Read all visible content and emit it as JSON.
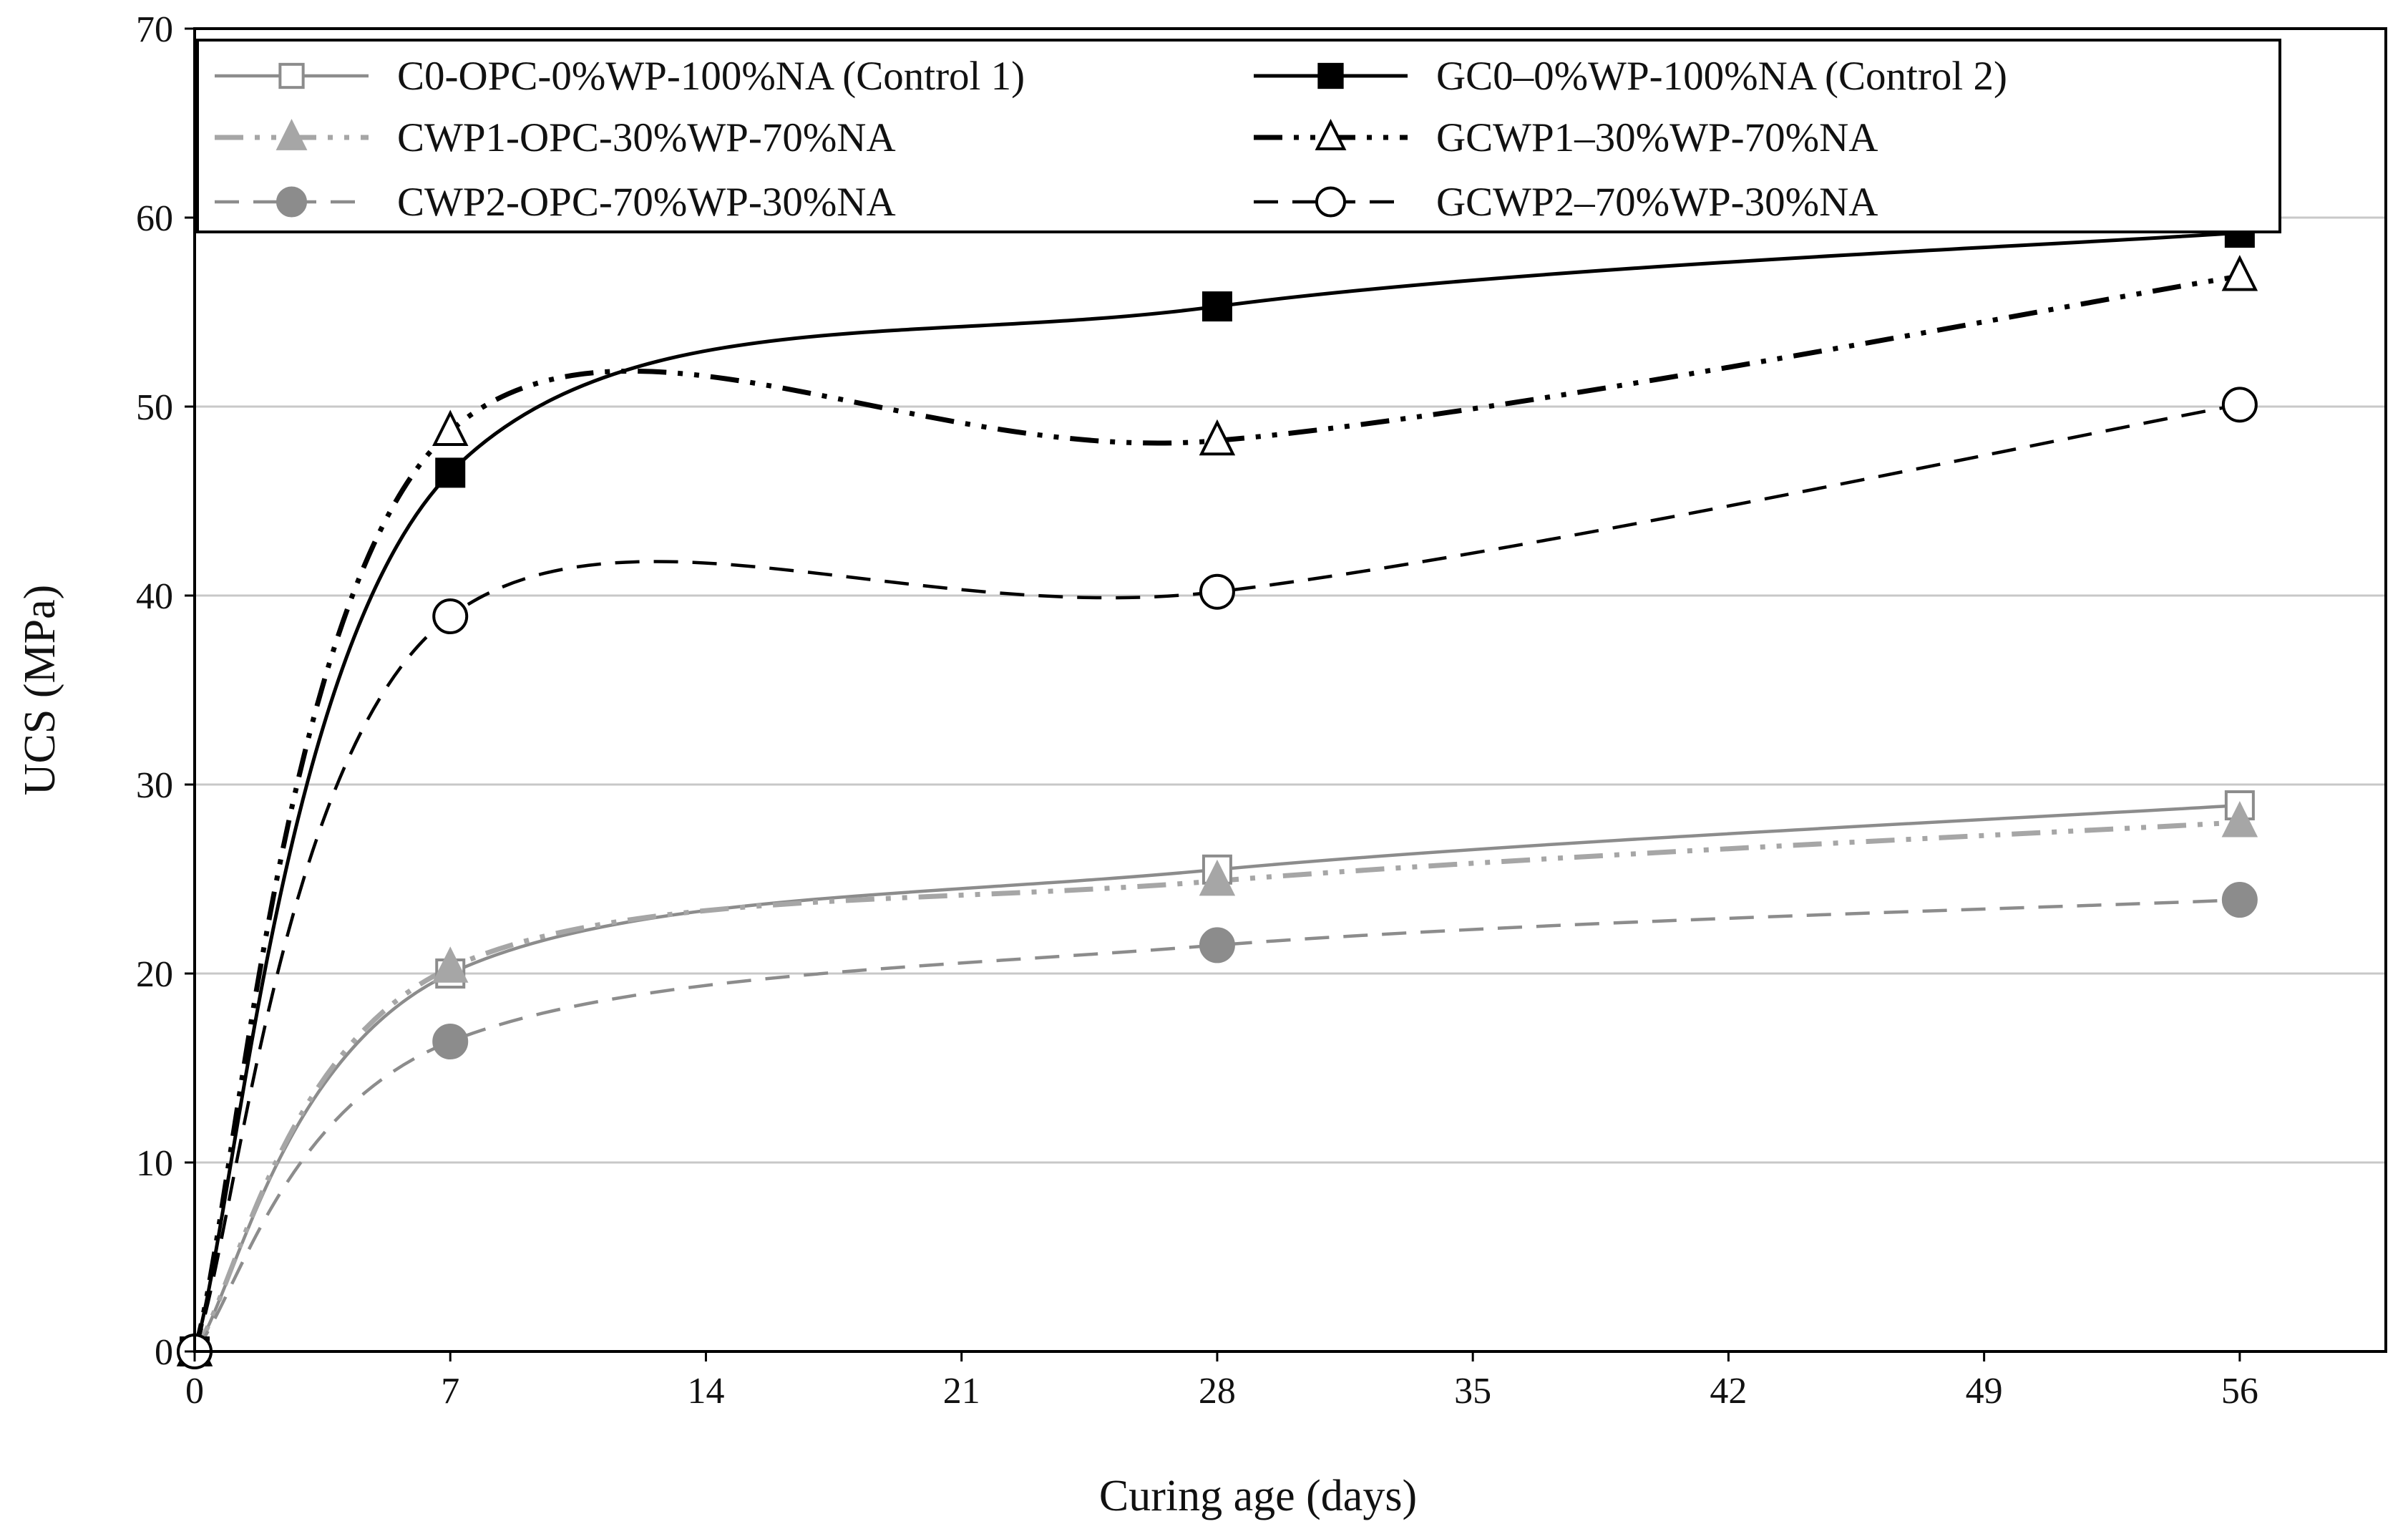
{
  "chart_data": {
    "type": "line",
    "title": "",
    "xlabel": "Curing age (days)",
    "ylabel": "UCS (MPa)",
    "xlim": [
      0,
      60
    ],
    "ylim": [
      0,
      70
    ],
    "xticks": [
      0,
      7,
      14,
      21,
      28,
      35,
      42,
      49,
      56
    ],
    "yticks": [
      0,
      10,
      20,
      30,
      40,
      50,
      60,
      70
    ],
    "x": [
      0,
      7,
      28,
      56
    ],
    "grid": "horizontal",
    "legend_position": "top",
    "series": [
      {
        "name": "C0-OPC-0%WP-100%NA (Control 1)",
        "values": [
          0,
          20.0,
          25.5,
          28.9
        ],
        "marker": "square-open",
        "color": "#8c8c8c",
        "line": "solid",
        "width": 4.5
      },
      {
        "name": "GC0–0%WP-100%NA (Control 2)",
        "values": [
          0,
          46.5,
          55.3,
          59.2
        ],
        "marker": "square-filled",
        "color": "#000000",
        "line": "solid",
        "width": 5
      },
      {
        "name": "CWP1-OPC-30%WP-70%NA",
        "values": [
          0,
          20.3,
          24.9,
          28.0
        ],
        "marker": "triangle-filled",
        "color": "#a6a6a6",
        "line": "dash-dot-dot",
        "width": 7
      },
      {
        "name": "GCWP1–30%WP-70%NA",
        "values": [
          0,
          48.7,
          48.2,
          56.9
        ],
        "marker": "triangle-open",
        "color": "#000000",
        "line": "dash-dot-dot",
        "width": 7
      },
      {
        "name": "CWP2-OPC-70%WP-30%NA",
        "values": [
          0,
          16.4,
          21.5,
          23.9
        ],
        "marker": "circle-filled",
        "color": "#8c8c8c",
        "line": "dashed",
        "width": 4.5
      },
      {
        "name": "GCWP2–70%WP-30%NA",
        "values": [
          0,
          38.9,
          40.2,
          50.1
        ],
        "marker": "circle-open",
        "color": "#000000",
        "line": "dashed",
        "width": 4.5
      }
    ],
    "legend_order": [
      0,
      1,
      2,
      3,
      4,
      5
    ]
  }
}
